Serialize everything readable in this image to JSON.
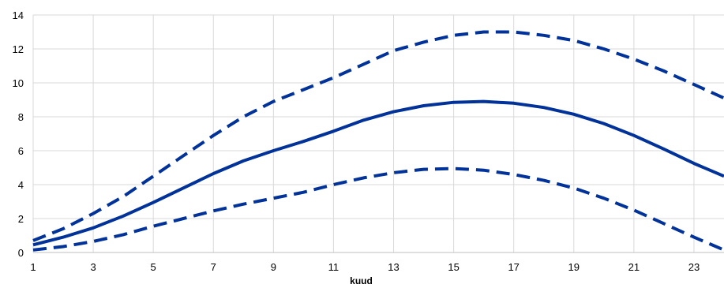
{
  "chart_data": {
    "type": "line",
    "title": "",
    "xlabel": "kuud",
    "ylabel": "",
    "x": [
      1,
      2,
      3,
      4,
      5,
      6,
      7,
      8,
      9,
      10,
      11,
      12,
      13,
      14,
      15,
      16,
      17,
      18,
      19,
      20,
      21,
      22,
      23,
      24
    ],
    "xlim": [
      1,
      24
    ],
    "ylim": [
      0,
      14
    ],
    "x_ticks": [
      1,
      3,
      5,
      7,
      9,
      11,
      13,
      15,
      17,
      19,
      21,
      23
    ],
    "y_ticks": [
      0,
      2,
      4,
      6,
      8,
      10,
      12,
      14
    ],
    "grid": true,
    "legend": "none",
    "series": [
      {
        "style": "dashed",
        "color": "#003299",
        "values": [
          0.7,
          1.4,
          2.3,
          3.3,
          4.5,
          5.7,
          6.9,
          8.0,
          8.9,
          9.6,
          10.3,
          11.1,
          11.9,
          12.4,
          12.8,
          13.0,
          13.0,
          12.8,
          12.5,
          12.0,
          11.4,
          10.7,
          9.9,
          9.1
        ]
      },
      {
        "style": "solid",
        "color": "#003299",
        "values": [
          0.45,
          0.9,
          1.45,
          2.15,
          2.95,
          3.8,
          4.65,
          5.4,
          6.0,
          6.55,
          7.15,
          7.8,
          8.3,
          8.65,
          8.85,
          8.9,
          8.8,
          8.55,
          8.15,
          7.6,
          6.9,
          6.1,
          5.25,
          4.5
        ]
      },
      {
        "style": "dashed",
        "color": "#003299",
        "values": [
          0.15,
          0.35,
          0.65,
          1.05,
          1.55,
          2.0,
          2.45,
          2.85,
          3.2,
          3.55,
          4.0,
          4.4,
          4.7,
          4.9,
          4.95,
          4.85,
          4.6,
          4.25,
          3.8,
          3.2,
          2.5,
          1.7,
          0.9,
          0.15
        ]
      }
    ]
  }
}
